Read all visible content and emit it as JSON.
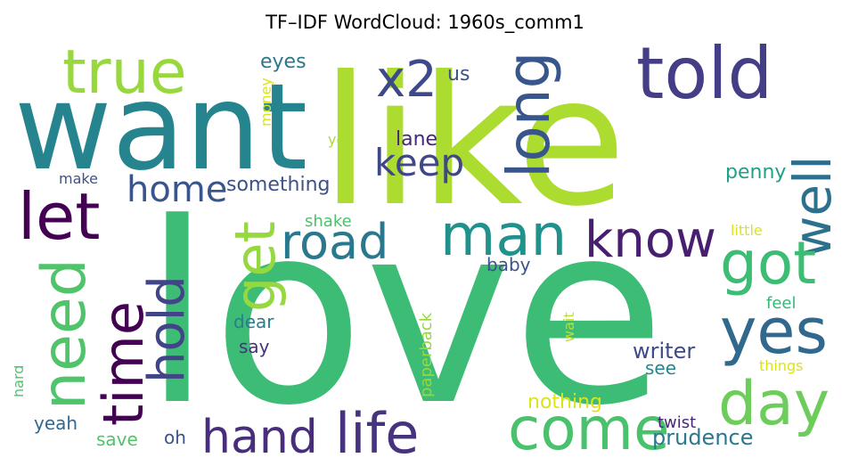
{
  "title": "TF–IDF WordCloud: 1960s_comm1",
  "words": [
    {
      "text": "love",
      "color": "#3cbc75"
    },
    {
      "text": "like",
      "color": "#addc30"
    },
    {
      "text": "want",
      "color": "#25848e"
    },
    {
      "text": "told",
      "color": "#433e85"
    },
    {
      "text": "true",
      "color": "#98d83e"
    },
    {
      "text": "x2",
      "color": "#3e4989"
    },
    {
      "text": "long",
      "color": "#39568c"
    },
    {
      "text": "let",
      "color": "#440154"
    },
    {
      "text": "keep",
      "color": "#3f4788"
    },
    {
      "text": "well",
      "color": "#2d708e"
    },
    {
      "text": "home",
      "color": "#3a548c"
    },
    {
      "text": "man",
      "color": "#21918c"
    },
    {
      "text": "road",
      "color": "#2a788e"
    },
    {
      "text": "know",
      "color": "#481f70"
    },
    {
      "text": "got",
      "color": "#3dbc74"
    },
    {
      "text": "get",
      "color": "#95d840"
    },
    {
      "text": "need",
      "color": "#50c46a"
    },
    {
      "text": "time",
      "color": "#440154"
    },
    {
      "text": "hold",
      "color": "#414487"
    },
    {
      "text": "yes",
      "color": "#31688e"
    },
    {
      "text": "day",
      "color": "#6ccd5a"
    },
    {
      "text": "come",
      "color": "#4ac16d"
    },
    {
      "text": "hand",
      "color": "#472d7b"
    },
    {
      "text": "life",
      "color": "#46327e"
    },
    {
      "text": "eyes",
      "color": "#2a788e"
    },
    {
      "text": "us",
      "color": "#3b528b"
    },
    {
      "text": "lane",
      "color": "#472878"
    },
    {
      "text": "money",
      "color": "#dde318"
    },
    {
      "text": "ye",
      "color": "#addc30"
    },
    {
      "text": "something",
      "color": "#3b528b"
    },
    {
      "text": "penny",
      "color": "#1fa088"
    },
    {
      "text": "make",
      "color": "#3b528b"
    },
    {
      "text": "shake",
      "color": "#4ac16d"
    },
    {
      "text": "little",
      "color": "#dde318"
    },
    {
      "text": "baby",
      "color": "#3b528b"
    },
    {
      "text": "paperback",
      "color": "#95d840"
    },
    {
      "text": "dear",
      "color": "#287d8e"
    },
    {
      "text": "feel",
      "color": "#35b779"
    },
    {
      "text": "say",
      "color": "#46327e"
    },
    {
      "text": "wait",
      "color": "#c0df25"
    },
    {
      "text": "writer",
      "color": "#3e4989"
    },
    {
      "text": "see",
      "color": "#24868e"
    },
    {
      "text": "things",
      "color": "#dde318"
    },
    {
      "text": "hard",
      "color": "#50c46a"
    },
    {
      "text": "nothing",
      "color": "#dde318"
    },
    {
      "text": "yeah",
      "color": "#31688e"
    },
    {
      "text": "oh",
      "color": "#3b528b"
    },
    {
      "text": "twist",
      "color": "#472878"
    },
    {
      "text": "save",
      "color": "#50c46a"
    },
    {
      "text": "prudence",
      "color": "#2a788e"
    }
  ]
}
